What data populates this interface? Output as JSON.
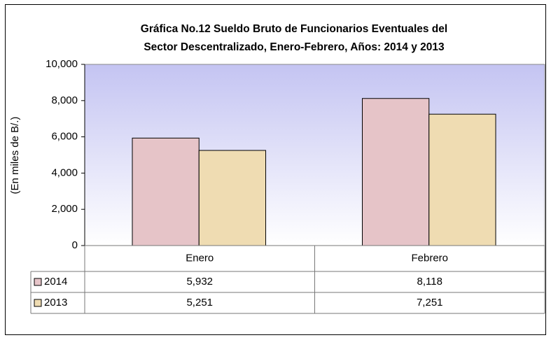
{
  "chart_data": {
    "type": "bar",
    "title": [
      "Gráfica No.12 Sueldo Bruto de Funcionarios Eventuales del",
      "Sector Descentralizado, Enero-Febrero, Años: 2014 y 2013"
    ],
    "y_label": "(En miles de B/.)",
    "categories": [
      "Enero",
      "Febrero"
    ],
    "series": [
      {
        "name": "2014",
        "color": "#e6c4c8",
        "values": [
          5932,
          8118
        ],
        "value_labels": [
          "5,932",
          "8,118"
        ]
      },
      {
        "name": "2013",
        "color": "#efdcb2",
        "values": [
          5251,
          7251
        ],
        "value_labels": [
          "5,251",
          "7,251"
        ]
      }
    ],
    "ylim": [
      0,
      10000
    ],
    "yticks": [
      0,
      {
        "value": 2000,
        "label": "2,000"
      },
      {
        "value": 4000,
        "label": "4,000"
      },
      {
        "value": 6000,
        "label": "6,000"
      },
      {
        "value": 8000,
        "label": "8,000"
      },
      {
        "value": 10000,
        "label": "10,000"
      }
    ],
    "data_table": true
  }
}
